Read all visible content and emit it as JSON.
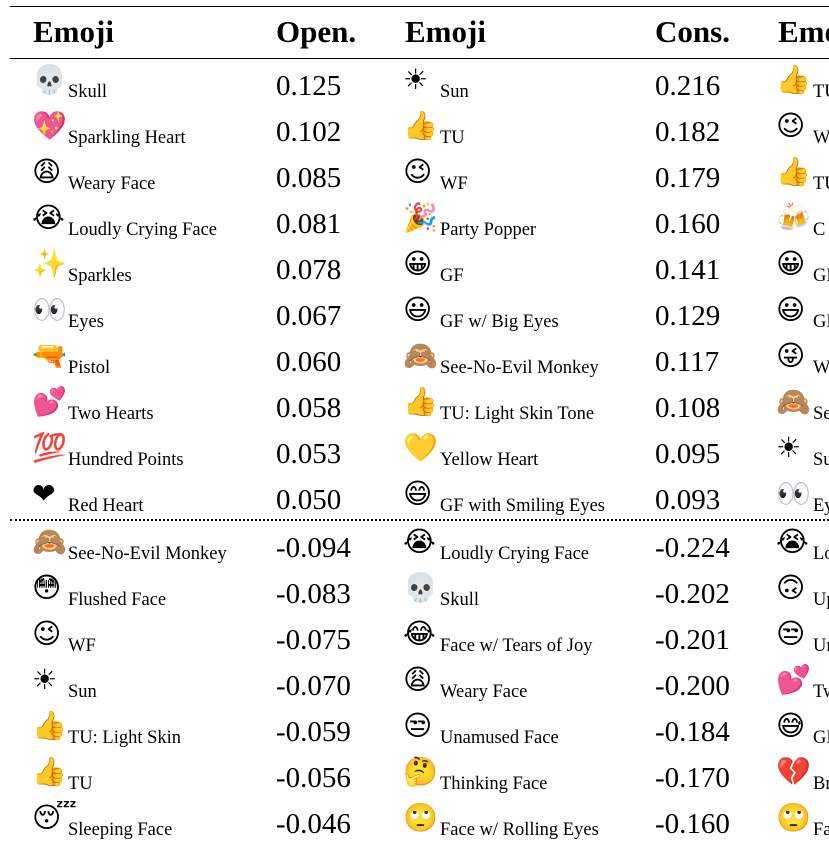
{
  "headers": [
    "Emoji",
    "Open.",
    "Emoji",
    "Cons.",
    "Emoji"
  ],
  "columns": [
    {
      "emoji_header": "Emoji",
      "value_header": "Open.",
      "rows": [
        {
          "glyph": "💀",
          "icon": "skull-icon",
          "label": "Skull",
          "value": "0.125"
        },
        {
          "glyph": "💖",
          "icon": "sparkling-heart-icon",
          "label": "Sparkling Heart",
          "value": "0.102"
        },
        {
          "glyph": "😩",
          "icon": "weary-face-icon",
          "label": "Weary Face",
          "value": "0.085"
        },
        {
          "glyph": "😭",
          "icon": "loudly-crying-face-icon",
          "label": "Loudly Crying Face",
          "value": "0.081"
        },
        {
          "glyph": "✨",
          "icon": "sparkles-icon",
          "label": "Sparkles",
          "value": "0.078"
        },
        {
          "glyph": "👀",
          "icon": "eyes-icon",
          "label": "Eyes",
          "value": "0.067"
        },
        {
          "glyph": "🔫",
          "icon": "pistol-icon",
          "label": "Pistol",
          "value": "0.060"
        },
        {
          "glyph": "💕",
          "icon": "two-hearts-icon",
          "label": "Two Hearts",
          "value": "0.058"
        },
        {
          "glyph": "💯",
          "icon": "hundred-points-icon",
          "label": "Hundred Points",
          "value": "0.053"
        },
        {
          "glyph": "❤",
          "icon": "red-heart-icon",
          "label": "Red Heart",
          "value": "0.050"
        },
        {
          "glyph": "🙈",
          "icon": "see-no-evil-monkey-icon",
          "label": "See-No-Evil Monkey",
          "value": "-0.094"
        },
        {
          "glyph": "😳",
          "icon": "flushed-face-icon",
          "label": "Flushed Face",
          "value": "-0.083"
        },
        {
          "glyph": "😉",
          "icon": "winking-face-icon",
          "label": "WF",
          "value": "-0.075"
        },
        {
          "glyph": "☀",
          "icon": "sun-icon",
          "label": "Sun",
          "value": "-0.070"
        },
        {
          "glyph": "👍",
          "icon": "thumbs-up-light-skin-icon",
          "label": "TU: Light Skin",
          "value": "-0.059"
        },
        {
          "glyph": "👍",
          "icon": "thumbs-up-icon",
          "label": "TU",
          "value": "-0.056"
        },
        {
          "glyph": "😴",
          "icon": "sleeping-face-icon",
          "label": "Sleeping Face",
          "value": "-0.046"
        }
      ]
    },
    {
      "emoji_header": "Emoji",
      "value_header": "Cons.",
      "rows": [
        {
          "glyph": "☀",
          "icon": "sun-icon",
          "label": "Sun",
          "value": "0.216"
        },
        {
          "glyph": "👍",
          "icon": "thumbs-up-icon",
          "label": "TU",
          "value": "0.182"
        },
        {
          "glyph": "😉",
          "icon": "winking-face-icon",
          "label": "WF",
          "value": "0.179"
        },
        {
          "glyph": "🎉",
          "icon": "party-popper-icon",
          "label": "Party Popper",
          "value": "0.160"
        },
        {
          "glyph": "😀",
          "icon": "grinning-face-icon",
          "label": "GF",
          "value": "0.141"
        },
        {
          "glyph": "😃",
          "icon": "grinning-face-big-eyes-icon",
          "label": "GF w/ Big Eyes",
          "value": "0.129"
        },
        {
          "glyph": "🙈",
          "icon": "see-no-evil-monkey-icon",
          "label": "See-No-Evil Monkey",
          "value": "0.117"
        },
        {
          "glyph": "👍",
          "icon": "thumbs-up-light-skin-icon",
          "label": "TU: Light Skin Tone",
          "value": "0.108"
        },
        {
          "glyph": "💛",
          "icon": "yellow-heart-icon",
          "label": "Yellow Heart",
          "value": "0.095"
        },
        {
          "glyph": "😄",
          "icon": "grinning-face-smiling-eyes-icon",
          "label": "GF with Smiling Eyes",
          "value": "0.093"
        },
        {
          "glyph": "😭",
          "icon": "loudly-crying-face-icon",
          "label": "Loudly Crying Face",
          "value": "-0.224"
        },
        {
          "glyph": "💀",
          "icon": "skull-icon",
          "label": "Skull",
          "value": "-0.202"
        },
        {
          "glyph": "😂",
          "icon": "face-tears-of-joy-icon",
          "label": "Face w/ Tears of Joy",
          "value": "-0.201"
        },
        {
          "glyph": "😩",
          "icon": "weary-face-icon",
          "label": "Weary Face",
          "value": "-0.200"
        },
        {
          "glyph": "😒",
          "icon": "unamused-face-icon",
          "label": "Unamused Face",
          "value": "-0.184"
        },
        {
          "glyph": "🤔",
          "icon": "thinking-face-icon",
          "label": "Thinking Face",
          "value": "-0.170"
        },
        {
          "glyph": "🙄",
          "icon": "face-rolling-eyes-icon",
          "label": "Face w/ Rolling Eyes",
          "value": "-0.160"
        }
      ]
    },
    {
      "emoji_header": "Emoji",
      "rows": [
        {
          "glyph": "👍",
          "icon": "thumbs-up-icon",
          "label": "TU"
        },
        {
          "glyph": "😉",
          "icon": "winking-face-icon",
          "label": "W"
        },
        {
          "glyph": "👍",
          "icon": "thumbs-up-light-skin-icon",
          "label": "TU"
        },
        {
          "glyph": "🍻",
          "icon": "clinking-beer-mugs-icon",
          "label": "C"
        },
        {
          "glyph": "😀",
          "icon": "grinning-face-icon",
          "label": "GF"
        },
        {
          "glyph": "😃",
          "icon": "grinning-face-big-eyes-icon",
          "label": "GF"
        },
        {
          "glyph": "😜",
          "icon": "winking-face-tongue-icon",
          "label": "W"
        },
        {
          "glyph": "🙈",
          "icon": "see-no-evil-monkey-icon",
          "label": "Se"
        },
        {
          "glyph": "☀",
          "icon": "sun-icon",
          "label": "Su"
        },
        {
          "glyph": "👀",
          "icon": "eyes-icon",
          "label": "Ey"
        },
        {
          "glyph": "😭",
          "icon": "loudly-crying-face-icon",
          "label": "Lo"
        },
        {
          "glyph": "🙃",
          "icon": "upside-down-face-icon",
          "label": "Up"
        },
        {
          "glyph": "😒",
          "icon": "unamused-face-icon",
          "label": "Un"
        },
        {
          "glyph": "💕",
          "icon": "two-hearts-icon",
          "label": "Tw"
        },
        {
          "glyph": "😅",
          "icon": "grinning-face-sweat-icon",
          "label": "GF"
        },
        {
          "glyph": "💔",
          "icon": "broken-heart-icon",
          "label": "Br"
        },
        {
          "glyph": "🙄",
          "icon": "face-rolling-eyes-icon",
          "label": "Fa"
        }
      ]
    }
  ],
  "colors": {
    "text": "#000000",
    "emoji_yellow": "#F5B800",
    "heart_red": "#C8102E"
  }
}
